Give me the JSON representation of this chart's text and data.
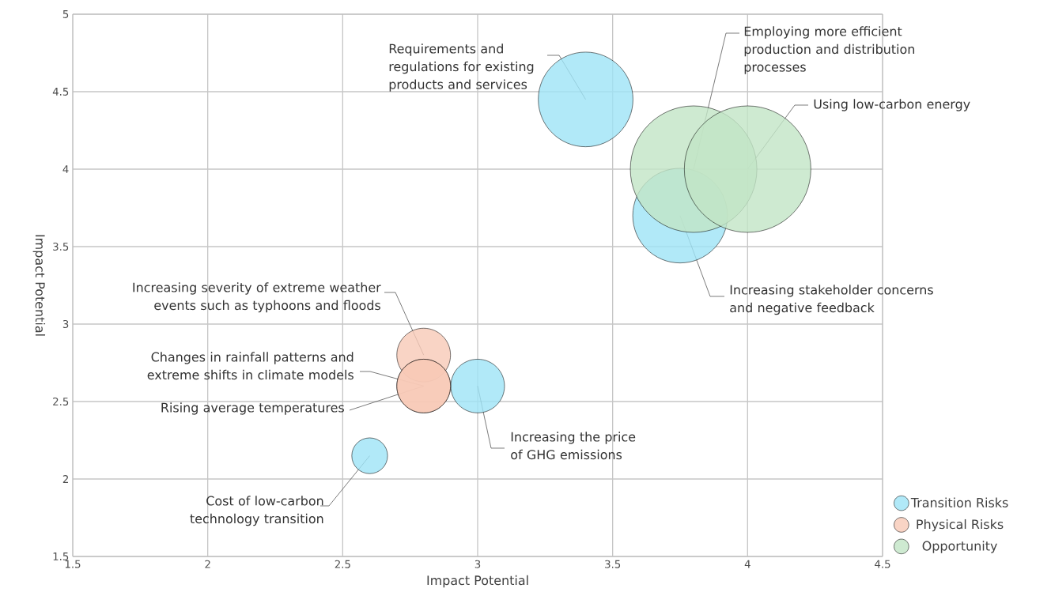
{
  "chart_data": {
    "type": "bubble",
    "xlabel": "Impact Potential",
    "ylabel": "Impact Potential",
    "xlim": [
      1.5,
      4.5
    ],
    "xticks": [
      1.5,
      2,
      2.5,
      3,
      3.5,
      4,
      4.5
    ],
    "ylim": [
      1.5,
      5
    ],
    "yticks": [
      1.5,
      2,
      2.5,
      3,
      3.5,
      4,
      4.5,
      5
    ],
    "grid": true,
    "legend": "right",
    "series": [
      {
        "name": "Transition Risks",
        "color": "#9de3f6",
        "x": [
          3.4,
          3.75,
          3.0,
          2.6
        ],
        "values": [
          4.45,
          3.7,
          2.6,
          2.15
        ],
        "sizes": [
          0.56,
          0.56,
          0.18,
          0.08
        ]
      },
      {
        "name": "Physical Risks",
        "color": "#f8c9b6",
        "x": [
          2.8,
          2.8,
          2.8
        ],
        "values": [
          2.8,
          2.6,
          2.6
        ],
        "sizes": [
          0.18,
          0.18,
          0.18
        ]
      },
      {
        "name": "Opportunity",
        "color": "#c2e5c6",
        "x": [
          3.8,
          4.0
        ],
        "values": [
          4.0,
          4.0
        ],
        "sizes": [
          1,
          1
        ]
      }
    ],
    "annotations": [
      {
        "text": "Requirements and regulations for existing products and services",
        "x": 3.4,
        "y": 4.45
      },
      {
        "text": "Increasing stakeholder concerns and negative feedback",
        "x": 3.75,
        "y": 3.7
      },
      {
        "text": "Increasing the price of GHG emissions",
        "x": 3.0,
        "y": 2.6
      },
      {
        "text": "Cost of low-carbon technology transition",
        "x": 2.6,
        "y": 2.15
      },
      {
        "text": "Increasing severity of extreme weather events such as typhoons and floods",
        "x": 2.8,
        "y": 2.8
      },
      {
        "text": "Changes in rainfall patterns and extreme shifts in climate models",
        "x": 2.8,
        "y": 2.6
      },
      {
        "text": "Rising average temperatures",
        "x": 2.8,
        "y": 2.6
      },
      {
        "text": "Employing more efficient production and distribution processes",
        "x": 3.8,
        "y": 4.0
      },
      {
        "text": "Using low-carbon energy",
        "x": 4.0,
        "y": 4.0
      }
    ]
  }
}
